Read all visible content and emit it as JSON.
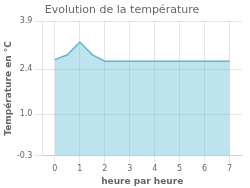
{
  "chart_data": {
    "type": "area",
    "title": "Evolution de la température",
    "xlabel": "heure par heure",
    "ylabel": "Température en °C",
    "x": [
      0,
      0.5,
      1,
      1.5,
      2,
      3,
      4,
      5,
      6,
      7
    ],
    "values": [
      2.7,
      2.85,
      3.25,
      2.85,
      2.65,
      2.65,
      2.65,
      2.65,
      2.65,
      2.65
    ],
    "xlim": [
      -0.5,
      7.5
    ],
    "ylim": [
      -0.3,
      3.9
    ],
    "xticks": [
      0,
      1,
      2,
      3,
      4,
      5,
      6,
      7
    ],
    "yticks": [
      -0.3,
      {
        "value": 1.0,
        "label": "1.0"
      },
      2.4,
      3.9
    ],
    "color": "#5bb8d4",
    "grid": true
  }
}
